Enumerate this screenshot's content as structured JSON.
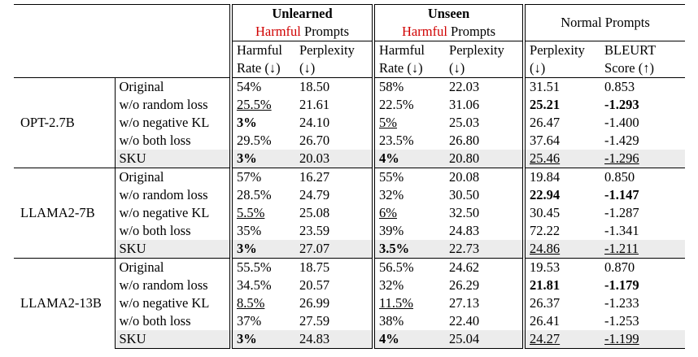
{
  "header": {
    "unlearned": "Unlearned",
    "unseen": "Unseen",
    "harmful_word": "Harmful",
    "prompts_word": "Prompts",
    "normal_prompts": "Normal Prompts",
    "harmful_rate_1": "Harmful",
    "harmful_rate_2": "Rate (↓)",
    "perplexity_1": "Perplexity",
    "perplexity_2": "(↓)",
    "bleurt_1": "BLEURT",
    "bleurt_2": "Score (↑)"
  },
  "groups": [
    {
      "model": "OPT-2.7B",
      "rows": [
        {
          "method": "Original",
          "unl_hr": "54%",
          "unl_ppl": "18.50",
          "uns_hr": "58%",
          "uns_ppl": "22.03",
          "nrm_ppl": "31.51",
          "nrm_bleurt": "0.853"
        },
        {
          "method": "w/o random loss",
          "unl_hr": "25.5%",
          "unl_ppl": "21.61",
          "uns_hr": "22.5%",
          "uns_ppl": "31.06",
          "nrm_ppl": "25.21",
          "nrm_bleurt": "-1.293"
        },
        {
          "method": "w/o negative KL",
          "unl_hr": "3%",
          "unl_ppl": "24.10",
          "uns_hr": "5%",
          "uns_ppl": "25.03",
          "nrm_ppl": "26.47",
          "nrm_bleurt": "-1.400"
        },
        {
          "method": "w/o both loss",
          "unl_hr": "29.5%",
          "unl_ppl": "26.70",
          "uns_hr": "23.5%",
          "uns_ppl": "26.80",
          "nrm_ppl": "37.64",
          "nrm_bleurt": "-1.429"
        },
        {
          "method": "SKU",
          "unl_hr": "3%",
          "unl_ppl": "20.03",
          "uns_hr": "4%",
          "uns_ppl": "20.80",
          "nrm_ppl": "25.46",
          "nrm_bleurt": "-1.296"
        }
      ]
    },
    {
      "model": "LLAMA2-7B",
      "rows": [
        {
          "method": "Original",
          "unl_hr": "57%",
          "unl_ppl": "16.27",
          "uns_hr": "55%",
          "uns_ppl": "20.08",
          "nrm_ppl": "19.84",
          "nrm_bleurt": "0.850"
        },
        {
          "method": "w/o random loss",
          "unl_hr": "28.5%",
          "unl_ppl": "24.79",
          "uns_hr": "32%",
          "uns_ppl": "30.50",
          "nrm_ppl": "22.94",
          "nrm_bleurt": "-1.147"
        },
        {
          "method": "w/o negative KL",
          "unl_hr": "5.5%",
          "unl_ppl": "25.08",
          "uns_hr": "6%",
          "uns_ppl": "32.50",
          "nrm_ppl": "30.45",
          "nrm_bleurt": "-1.287"
        },
        {
          "method": "w/o both loss",
          "unl_hr": "35%",
          "unl_ppl": "23.59",
          "uns_hr": "39%",
          "uns_ppl": "24.83",
          "nrm_ppl": "72.22",
          "nrm_bleurt": "-1.341"
        },
        {
          "method": "SKU",
          "unl_hr": "3%",
          "unl_ppl": "27.07",
          "uns_hr": "3.5%",
          "uns_ppl": "22.73",
          "nrm_ppl": "24.86",
          "nrm_bleurt": "-1.211"
        }
      ]
    },
    {
      "model": "LLAMA2-13B",
      "rows": [
        {
          "method": "Original",
          "unl_hr": "55.5%",
          "unl_ppl": "18.75",
          "uns_hr": "56.5%",
          "uns_ppl": "24.62",
          "nrm_ppl": "19.53",
          "nrm_bleurt": "0.870"
        },
        {
          "method": "w/o random loss",
          "unl_hr": "34.5%",
          "unl_ppl": "20.57",
          "uns_hr": "32%",
          "uns_ppl": "26.29",
          "nrm_ppl": "21.81",
          "nrm_bleurt": "-1.179"
        },
        {
          "method": "w/o negative KL",
          "unl_hr": "8.5%",
          "unl_ppl": "26.99",
          "uns_hr": "11.5%",
          "uns_ppl": "27.13",
          "nrm_ppl": "26.37",
          "nrm_bleurt": "-1.233"
        },
        {
          "method": "w/o both loss",
          "unl_hr": "37%",
          "unl_ppl": "27.59",
          "uns_hr": "38%",
          "uns_ppl": "22.40",
          "nrm_ppl": "26.41",
          "nrm_bleurt": "-1.253"
        },
        {
          "method": "SKU",
          "unl_hr": "3%",
          "unl_ppl": "24.83",
          "uns_hr": "4%",
          "uns_ppl": "25.04",
          "nrm_ppl": "24.27",
          "nrm_bleurt": "-1.199"
        }
      ]
    }
  ],
  "styles": {
    "bold": [
      "0.1.nrm_ppl",
      "0.1.nrm_bleurt",
      "0.2.unl_hr",
      "0.4.unl_hr",
      "0.4.uns_hr",
      "1.1.nrm_ppl",
      "1.1.nrm_bleurt",
      "1.4.unl_hr",
      "1.4.uns_hr",
      "2.1.nrm_ppl",
      "2.1.nrm_bleurt",
      "2.4.unl_hr",
      "2.4.uns_hr"
    ],
    "underline": [
      "0.1.unl_hr",
      "0.2.uns_hr",
      "0.4.nrm_ppl",
      "0.4.nrm_bleurt",
      "1.2.unl_hr",
      "1.2.uns_hr",
      "1.4.nrm_ppl",
      "1.4.nrm_bleurt",
      "2.2.unl_hr",
      "2.2.uns_hr",
      "2.4.nrm_ppl",
      "2.4.nrm_bleurt"
    ],
    "highlight_row": "SKU",
    "highlight_color": "#ececec",
    "harmful_color": "#d00000"
  }
}
